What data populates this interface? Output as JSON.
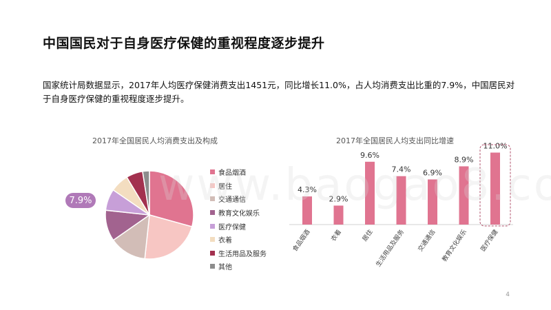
{
  "slide": {
    "title": "中国国民对于自身医疗保健的重视程度逐步提升",
    "body": "国家统计局数据显示，2017年人均医疗保健消费支出1451元，同比增长11.0%，占人均消费支出比重的7.9%，中国居民对于自身医疗保健的重视程度逐步提升。",
    "page_number": "4",
    "watermark": "www.baogao8.com"
  },
  "chart_data": [
    {
      "type": "pie",
      "title": "2017年全国居民人均消费支出及构成",
      "categories": [
        "食品烟酒",
        "居住",
        "交通通信",
        "教育文化娱乐",
        "医疗保健",
        "衣着",
        "生活用品及服务",
        "其他"
      ],
      "values": [
        29.3,
        22.4,
        13.6,
        11.4,
        7.9,
        6.8,
        6.1,
        2.5
      ],
      "colors": [
        "#e07490",
        "#f7c6c3",
        "#d2bdb7",
        "#a2638f",
        "#c79fd8",
        "#f3ddc0",
        "#a3314f",
        "#8d8d8d"
      ],
      "highlight": {
        "category": "医疗保健",
        "label": "7.9%"
      },
      "legend_position": "right"
    },
    {
      "type": "bar",
      "title": "2017年全国居民人均支出同比增速",
      "categories": [
        "食品烟酒",
        "衣着",
        "居住",
        "生活用品及服务",
        "交通通信",
        "教育文化娱乐",
        "医疗保健"
      ],
      "values": [
        4.3,
        2.9,
        9.6,
        7.4,
        6.9,
        8.9,
        11.0
      ],
      "data_labels": [
        "4.3%",
        "2.9%",
        "9.6%",
        "7.4%",
        "6.9%",
        "8.9%",
        "11.0%"
      ],
      "ylim": [
        0,
        12
      ],
      "color": "#e07490",
      "highlight": "医疗保健",
      "grid": false
    }
  ]
}
